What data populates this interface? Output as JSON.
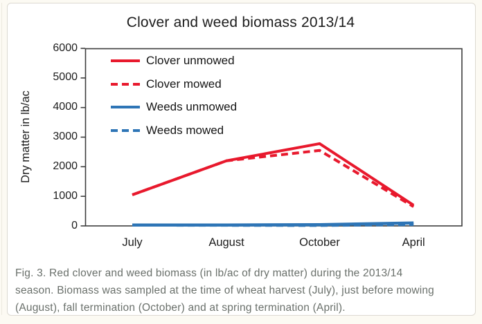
{
  "window": {
    "background": "#fcfaf3",
    "card_background": "#ffffff",
    "card_border": "#dcd9d1"
  },
  "chart_data": {
    "type": "line",
    "title": "Clover and weed biomass 2013/14",
    "categories": [
      "July",
      "August",
      "October",
      "April"
    ],
    "series": [
      {
        "name": "Clover unmowed",
        "color": "#e8192d",
        "line_style": "solid",
        "values": [
          1050,
          2200,
          2780,
          700
        ]
      },
      {
        "name": "Clover mowed",
        "color": "#e8192d",
        "line_style": "dashed",
        "values": [
          1050,
          2200,
          2550,
          650
        ]
      },
      {
        "name": "Weeds unmowed",
        "color": "#2e75b6",
        "line_style": "solid",
        "values": [
          30,
          30,
          40,
          100
        ]
      },
      {
        "name": "Weeds mowed",
        "color": "#2e75b6",
        "line_style": "dashed",
        "values": [
          30,
          25,
          20,
          50
        ]
      }
    ],
    "xlabel": "",
    "ylabel": "Dry matter in lb/ac",
    "ylim": [
      0,
      6000
    ],
    "y_ticks": [
      0,
      1000,
      2000,
      3000,
      4000,
      5000,
      6000
    ],
    "grid": false,
    "plot_border": true,
    "axis_color": "#3c3c3c",
    "legend_position": "inside-top-left"
  },
  "figure": {
    "caption_lines": [
      "Fig. 3. Red clover and weed biomass (in lb/ac of dry matter) during the 2013/14",
      "season. Biomass was sampled at the time of wheat harvest (July), just before mowing",
      "(August), fall termination (October) and at spring termination (April)."
    ]
  }
}
